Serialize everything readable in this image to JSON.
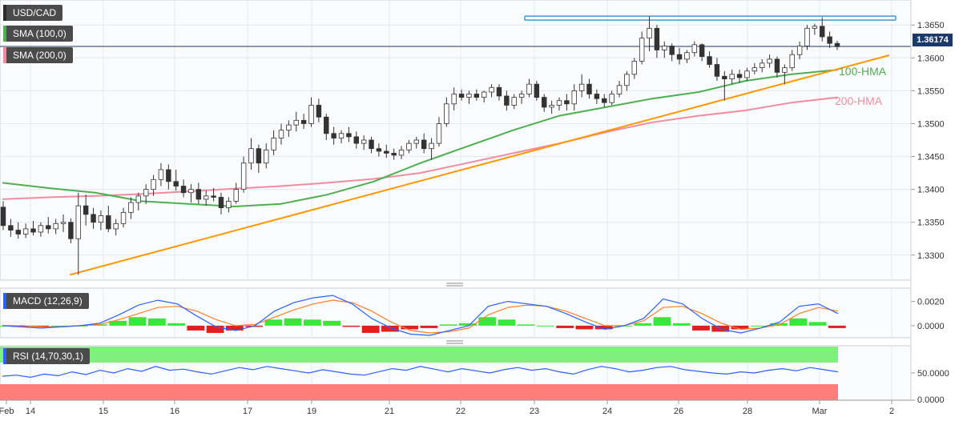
{
  "chart_data": [
    {
      "type": "candlestick",
      "symbol": "USD/CAD",
      "indicators": [
        "SMA (100,0)",
        "SMA (200,0)"
      ],
      "y_ticks": [
        "1.3650",
        "1.3600",
        "1.3550",
        "1.3500",
        "1.3450",
        "1.3400",
        "1.3350",
        "1.3300"
      ],
      "y_tick_values": [
        1.365,
        1.36,
        1.355,
        1.35,
        1.345,
        1.34,
        1.335,
        1.33
      ],
      "ylim": [
        1.3262,
        1.3688
      ],
      "x_ticks": [
        "Feb",
        "14",
        "15",
        "16",
        "17",
        "19",
        "21",
        "22",
        "23",
        "24",
        "26",
        "28",
        "Mar",
        "2"
      ],
      "last_price": "1.36174",
      "grid": true,
      "annotations": [
        {
          "text": "100-HMA",
          "color": "#4caf50"
        },
        {
          "text": "200-HMA",
          "color": "#f08ca0"
        }
      ],
      "candles_ohlc": [
        [
          1.3373,
          1.3382,
          1.3338,
          1.3345
        ],
        [
          1.3345,
          1.3355,
          1.3328,
          1.3338
        ],
        [
          1.3338,
          1.335,
          1.3325,
          1.3332
        ],
        [
          1.3332,
          1.3348,
          1.3326,
          1.334
        ],
        [
          1.334,
          1.3352,
          1.333,
          1.3335
        ],
        [
          1.3335,
          1.335,
          1.3328,
          1.3345
        ],
        [
          1.3345,
          1.3358,
          1.3333,
          1.334
        ],
        [
          1.334,
          1.3355,
          1.3332,
          1.3348
        ],
        [
          1.3348,
          1.3362,
          1.3335,
          1.335
        ],
        [
          1.335,
          1.3356,
          1.3318,
          1.3325
        ],
        [
          1.3325,
          1.3395,
          1.327,
          1.3375
        ],
        [
          1.3375,
          1.3392,
          1.3345,
          1.3362
        ],
        [
          1.3362,
          1.3372,
          1.334,
          1.335
        ],
        [
          1.335,
          1.3368,
          1.3338,
          1.336
        ],
        [
          1.336,
          1.3375,
          1.3335,
          1.334
        ],
        [
          1.334,
          1.3355,
          1.333,
          1.3348
        ],
        [
          1.3348,
          1.3372,
          1.3342,
          1.3365
        ],
        [
          1.3365,
          1.3388,
          1.3355,
          1.338
        ],
        [
          1.338,
          1.3395,
          1.3368,
          1.339
        ],
        [
          1.339,
          1.3408,
          1.3378,
          1.34
        ],
        [
          1.34,
          1.3422,
          1.339,
          1.3415
        ],
        [
          1.3415,
          1.344,
          1.3405,
          1.343
        ],
        [
          1.343,
          1.3438,
          1.34,
          1.3412
        ],
        [
          1.3412,
          1.343,
          1.3398,
          1.3405
        ],
        [
          1.3405,
          1.3415,
          1.3388,
          1.3395
        ],
        [
          1.3395,
          1.3408,
          1.338,
          1.34
        ],
        [
          1.34,
          1.341,
          1.3378,
          1.3385
        ],
        [
          1.3385,
          1.3398,
          1.3375,
          1.339
        ],
        [
          1.339,
          1.3402,
          1.3382,
          1.3388
        ],
        [
          1.3388,
          1.3395,
          1.3362,
          1.3372
        ],
        [
          1.3372,
          1.3388,
          1.3365,
          1.3382
        ],
        [
          1.3382,
          1.341,
          1.3378,
          1.34
        ],
        [
          1.34,
          1.345,
          1.3395,
          1.344
        ],
        [
          1.344,
          1.3478,
          1.343,
          1.3462
        ],
        [
          1.3462,
          1.3468,
          1.3425,
          1.344
        ],
        [
          1.344,
          1.347,
          1.3432,
          1.346
        ],
        [
          1.346,
          1.349,
          1.3452,
          1.3478
        ],
        [
          1.3478,
          1.35,
          1.3468,
          1.349
        ],
        [
          1.349,
          1.3505,
          1.348,
          1.3498
        ],
        [
          1.3498,
          1.3518,
          1.3488,
          1.3505
        ],
        [
          1.3505,
          1.3515,
          1.3492,
          1.35
        ],
        [
          1.35,
          1.354,
          1.3495,
          1.3528
        ],
        [
          1.3528,
          1.3538,
          1.3502,
          1.351
        ],
        [
          1.351,
          1.3515,
          1.3475,
          1.3485
        ],
        [
          1.3485,
          1.3495,
          1.3468,
          1.3478
        ],
        [
          1.3478,
          1.349,
          1.347,
          1.3485
        ],
        [
          1.3485,
          1.3495,
          1.3472,
          1.348
        ],
        [
          1.348,
          1.3488,
          1.3462,
          1.347
        ],
        [
          1.347,
          1.3482,
          1.346,
          1.3475
        ],
        [
          1.3475,
          1.348,
          1.3455,
          1.3462
        ],
        [
          1.3462,
          1.347,
          1.345,
          1.3458
        ],
        [
          1.3458,
          1.3468,
          1.3448,
          1.3455
        ],
        [
          1.3455,
          1.3462,
          1.3445,
          1.3452
        ],
        [
          1.3452,
          1.3466,
          1.3446,
          1.346
        ],
        [
          1.346,
          1.3475,
          1.3455,
          1.347
        ],
        [
          1.347,
          1.348,
          1.3462,
          1.3475
        ],
        [
          1.3475,
          1.3485,
          1.3455,
          1.3462
        ],
        [
          1.3462,
          1.3478,
          1.3445,
          1.347
        ],
        [
          1.347,
          1.351,
          1.3465,
          1.35
        ],
        [
          1.35,
          1.354,
          1.3495,
          1.353
        ],
        [
          1.353,
          1.3555,
          1.352,
          1.3545
        ],
        [
          1.3545,
          1.3552,
          1.3535,
          1.354
        ],
        [
          1.354,
          1.355,
          1.353,
          1.3545
        ],
        [
          1.3545,
          1.3552,
          1.3535,
          1.354
        ],
        [
          1.354,
          1.355,
          1.3532,
          1.3548
        ],
        [
          1.3548,
          1.356,
          1.354,
          1.3555
        ],
        [
          1.3555,
          1.356,
          1.3535,
          1.3542
        ],
        [
          1.3542,
          1.355,
          1.352,
          1.3528
        ],
        [
          1.3528,
          1.3545,
          1.3522,
          1.354
        ],
        [
          1.354,
          1.355,
          1.353,
          1.3545
        ],
        [
          1.3545,
          1.3568,
          1.354,
          1.356
        ],
        [
          1.356,
          1.3565,
          1.3535,
          1.354
        ],
        [
          1.354,
          1.3545,
          1.3518,
          1.3525
        ],
        [
          1.3525,
          1.3535,
          1.3515,
          1.3528
        ],
        [
          1.3528,
          1.354,
          1.352,
          1.3535
        ],
        [
          1.3535,
          1.3545,
          1.352,
          1.353
        ],
        [
          1.353,
          1.356,
          1.352,
          1.355
        ],
        [
          1.355,
          1.3575,
          1.354,
          1.356
        ],
        [
          1.356,
          1.3568,
          1.3538,
          1.3545
        ],
        [
          1.3545,
          1.3552,
          1.353,
          1.3538
        ],
        [
          1.3538,
          1.3545,
          1.3525,
          1.3532
        ],
        [
          1.3532,
          1.355,
          1.3528,
          1.3545
        ],
        [
          1.3545,
          1.3565,
          1.354,
          1.3558
        ],
        [
          1.3558,
          1.358,
          1.355,
          1.3575
        ],
        [
          1.3575,
          1.36,
          1.3568,
          1.3595
        ],
        [
          1.3595,
          1.364,
          1.359,
          1.363
        ],
        [
          1.363,
          1.3663,
          1.361,
          1.3645
        ],
        [
          1.3645,
          1.365,
          1.36,
          1.3612
        ],
        [
          1.3612,
          1.3625,
          1.36,
          1.3618
        ],
        [
          1.3618,
          1.3622,
          1.3595,
          1.3605
        ],
        [
          1.3605,
          1.3615,
          1.359,
          1.3598
        ],
        [
          1.3598,
          1.3612,
          1.3592,
          1.3608
        ],
        [
          1.3608,
          1.3625,
          1.3602,
          1.362
        ],
        [
          1.362,
          1.3622,
          1.3595,
          1.3602
        ],
        [
          1.3602,
          1.361,
          1.3585,
          1.359
        ],
        [
          1.359,
          1.36,
          1.3565,
          1.3572
        ],
        [
          1.3572,
          1.358,
          1.3535,
          1.3568
        ],
        [
          1.3568,
          1.3582,
          1.356,
          1.3575
        ],
        [
          1.3575,
          1.3582,
          1.3562,
          1.357
        ],
        [
          1.357,
          1.3585,
          1.3565,
          1.358
        ],
        [
          1.358,
          1.3592,
          1.3575,
          1.3585
        ],
        [
          1.3585,
          1.3598,
          1.3578,
          1.3592
        ],
        [
          1.3592,
          1.3605,
          1.3585,
          1.3598
        ],
        [
          1.3598,
          1.3602,
          1.357,
          1.3578
        ],
        [
          1.3578,
          1.359,
          1.356,
          1.3585
        ],
        [
          1.3585,
          1.3612,
          1.358,
          1.3605
        ],
        [
          1.3605,
          1.3625,
          1.3598,
          1.3618
        ],
        [
          1.3618,
          1.365,
          1.3612,
          1.3645
        ],
        [
          1.3645,
          1.3652,
          1.3635,
          1.3648
        ],
        [
          1.3648,
          1.3662,
          1.3625,
          1.3632
        ],
        [
          1.3632,
          1.364,
          1.3615,
          1.3622
        ],
        [
          1.3622,
          1.3626,
          1.3612,
          1.3617
        ]
      ],
      "sma100": [
        1.341,
        1.3402,
        1.3395,
        1.3382,
        1.3378,
        1.3374,
        1.3378,
        1.3392,
        1.3412,
        1.344,
        1.3465,
        1.349,
        1.3512,
        1.3525,
        1.3538,
        1.3548,
        1.3565,
        1.3575,
        1.3582
      ],
      "sma200": [
        1.3385,
        1.3388,
        1.339,
        1.3393,
        1.3397,
        1.3401,
        1.3405,
        1.341,
        1.3416,
        1.3425,
        1.344,
        1.3455,
        1.347,
        1.3487,
        1.3502,
        1.3512,
        1.352,
        1.3532,
        1.354
      ],
      "trendline": [
        [
          0,
          1.327
        ],
        [
          1,
          1.3604
        ]
      ],
      "resistance": 1.3661
    },
    {
      "type": "line",
      "indicator": "MACD (12,26,9)",
      "y_ticks": [
        "0.0020",
        "0.0000"
      ],
      "ylim": [
        -0.001,
        0.0031
      ],
      "macd": [
        0.0,
        -0.0001,
        -0.0002,
        -0.0001,
        0.0,
        0.0002,
        0.0009,
        0.0017,
        0.0021,
        0.0018,
        0.0008,
        -0.0001,
        -0.0004,
        0.0,
        0.0012,
        0.0019,
        0.0023,
        0.0025,
        0.0018,
        0.0006,
        -0.0002,
        -0.0007,
        -0.0008,
        -0.0004,
        0.0,
        0.0016,
        0.002,
        0.0018,
        0.0016,
        0.001,
        0.0003,
        -0.0003,
        0.0,
        0.0006,
        0.0022,
        0.0018,
        0.0006,
        -0.0003,
        -0.0006,
        -0.0002,
        0.0003,
        0.0016,
        0.0018,
        0.001
      ],
      "signal": [
        0.0,
        0.0,
        -0.0001,
        -0.0001,
        0.0,
        0.0001,
        0.0005,
        0.001,
        0.0015,
        0.0016,
        0.0012,
        0.0005,
        0.0,
        0.0001,
        0.0007,
        0.0013,
        0.0018,
        0.0021,
        0.0019,
        0.0012,
        0.0003,
        -0.0004,
        -0.0006,
        -0.0005,
        -0.0002,
        0.0009,
        0.0015,
        0.0017,
        0.0016,
        0.0012,
        0.0006,
        0.0,
        0.0,
        0.0004,
        0.0015,
        0.0016,
        0.001,
        0.0002,
        -0.0003,
        -0.0002,
        0.0001,
        0.001,
        0.0015,
        0.0012
      ]
    },
    {
      "type": "line",
      "indicator": "RSI (14,70,30,1)",
      "y_ticks": [
        "50.0000",
        "0.0000"
      ],
      "ylim": [
        0,
        100
      ],
      "overbought": 70,
      "oversold": 30,
      "rsi": [
        44,
        46,
        42,
        48,
        45,
        52,
        47,
        55,
        50,
        58,
        53,
        62,
        55,
        57,
        52,
        48,
        54,
        60,
        56,
        62,
        58,
        54,
        50,
        56,
        52,
        48,
        46,
        52,
        58,
        55,
        62,
        57,
        52,
        58,
        54,
        50,
        56,
        60,
        55,
        58,
        52,
        48,
        56,
        62,
        58,
        52,
        55,
        60,
        62,
        56,
        53,
        50,
        48,
        52,
        50,
        55,
        58,
        54,
        60,
        56,
        52
      ]
    }
  ]
}
